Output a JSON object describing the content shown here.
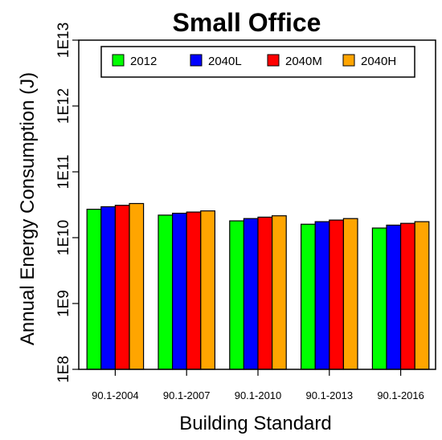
{
  "chart_data": {
    "type": "bar",
    "title": "Small Office",
    "xlabel": "Building Standard",
    "ylabel": "Annual Energy Consumption (J)",
    "yscale": "log",
    "ylim": [
      100000000.0,
      10000000000000.0
    ],
    "yticks": [
      {
        "value": 100000000.0,
        "label": "1E8"
      },
      {
        "value": 1000000000.0,
        "label": "1E9"
      },
      {
        "value": 10000000000.0,
        "label": "1E10"
      },
      {
        "value": 100000000000.0,
        "label": "1E11"
      },
      {
        "value": 1000000000000.0,
        "label": "1E12"
      },
      {
        "value": 10000000000000.0,
        "label": "1E13"
      }
    ],
    "categories": [
      "90.1-2004",
      "90.1-2007",
      "90.1-2010",
      "90.1-2013",
      "90.1-2016"
    ],
    "series": [
      {
        "name": "2012",
        "color": "#00ff00",
        "values": [
          27000000000.0,
          22000000000.0,
          18000000000.0,
          16000000000.0,
          14000000000.0
        ]
      },
      {
        "name": "2040L",
        "color": "#0000ff",
        "values": [
          29500000000.0,
          23500000000.0,
          19500000000.0,
          17500000000.0,
          15500000000.0
        ]
      },
      {
        "name": "2040M",
        "color": "#ff0000",
        "values": [
          31000000000.0,
          24500000000.0,
          20500000000.0,
          18500000000.0,
          16500000000.0
        ]
      },
      {
        "name": "2040H",
        "color": "#ffa500",
        "values": [
          33000000000.0,
          25500000000.0,
          21500000000.0,
          19500000000.0,
          17500000000.0
        ]
      }
    ],
    "grid": false,
    "legend_position": "top"
  }
}
